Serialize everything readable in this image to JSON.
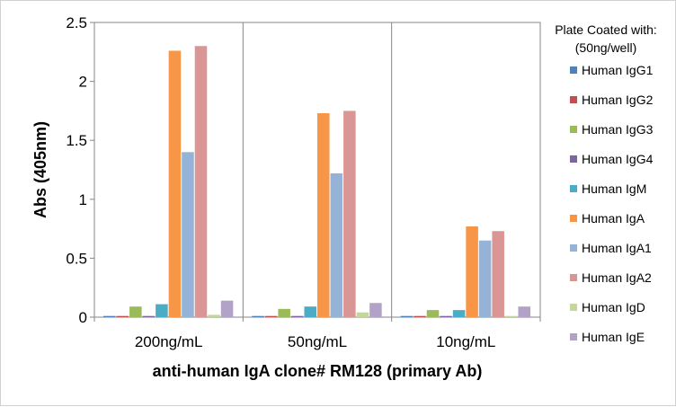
{
  "chart_data": {
    "type": "bar",
    "title": "",
    "xlabel": "anti-human IgA clone# RM128 (primary Ab)",
    "ylabel": "Abs (405nm)",
    "ylim": [
      0,
      2.5
    ],
    "yticks": [
      "0",
      "0.5",
      "1",
      "1.5",
      "2",
      "2.5"
    ],
    "ytick_values": [
      0,
      0.5,
      1,
      1.5,
      2,
      2.5
    ],
    "categories": [
      "200ng/mL",
      "50ng/mL",
      "10ng/mL"
    ],
    "grid": "vertical category separators",
    "legend_position": "right",
    "legend_title_line1": "Plate Coated with:",
    "legend_title_line2": "(50ng/well)",
    "series": [
      {
        "name": "Human IgG1",
        "color": "#4F81BD",
        "values": [
          0.01,
          0.01,
          0.01
        ]
      },
      {
        "name": "Human IgG2",
        "color": "#C0504D",
        "values": [
          0.01,
          0.01,
          0.01
        ]
      },
      {
        "name": "Human IgG3",
        "color": "#9BBB59",
        "values": [
          0.09,
          0.07,
          0.06
        ]
      },
      {
        "name": "Human IgG4",
        "color": "#8064A2",
        "values": [
          0.01,
          0.01,
          0.01
        ]
      },
      {
        "name": "Human IgM",
        "color": "#4BACC6",
        "values": [
          0.11,
          0.09,
          0.06
        ]
      },
      {
        "name": "Human IgA",
        "color": "#F79646",
        "values": [
          2.26,
          1.73,
          0.77
        ]
      },
      {
        "name": "Human IgA1",
        "color": "#95B3D7",
        "values": [
          1.4,
          1.22,
          0.65
        ]
      },
      {
        "name": "Human IgA2",
        "color": "#D99694",
        "values": [
          2.3,
          1.75,
          0.73
        ]
      },
      {
        "name": "Human IgD",
        "color": "#C3D69B",
        "values": [
          0.02,
          0.04,
          0.01
        ]
      },
      {
        "name": "Human IgE",
        "color": "#B2A2C7",
        "values": [
          0.14,
          0.12,
          0.09
        ]
      }
    ]
  }
}
